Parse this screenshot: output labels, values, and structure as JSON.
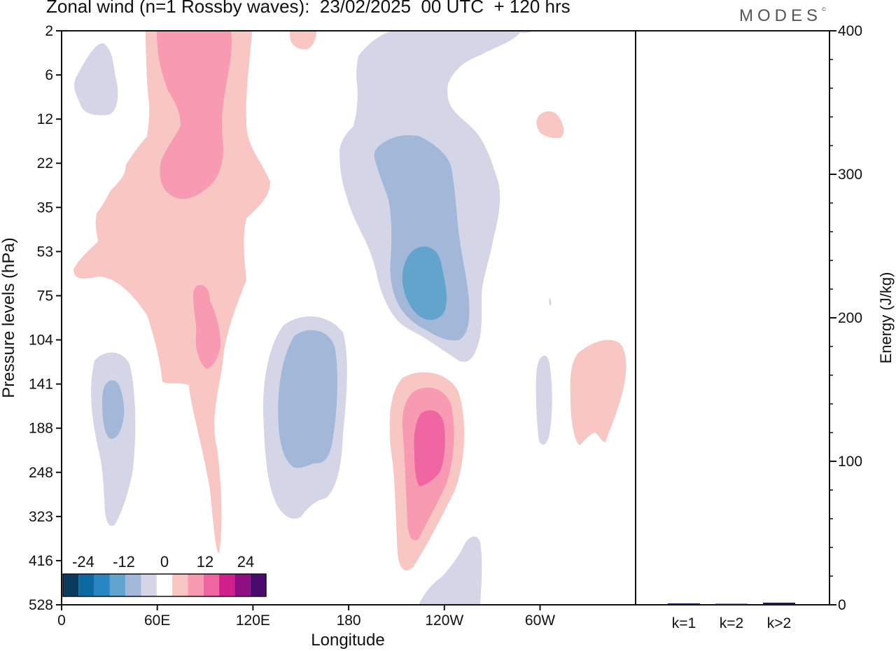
{
  "header": {
    "title": "Zonal wind (n=1 Rossby waves):  23/02/2025  00 UTC  + 120 hrs",
    "brand": "MODES",
    "brand_mark": "©"
  },
  "colors": {
    "background": "#ffffff",
    "neg_light": "#d4d5e7",
    "neg_mid": "#a3b8d8",
    "neg_strong": "#62a4cc",
    "pos_light": "#f8c6c3",
    "pos_mid": "#f99ab3",
    "pos_strong": "#f066a2",
    "energy_bar": "#1c1c4a"
  },
  "chart_data": [
    {
      "type": "heatmap",
      "xlabel": "Longitude",
      "ylabel": "Pressure levels (hPa)",
      "x_tick_labels": [
        "0",
        "60E",
        "120E",
        "180",
        "120W",
        "60W"
      ],
      "y_tick_labels": [
        "2",
        "6",
        "12",
        "22",
        "35",
        "53",
        "75",
        "104",
        "141",
        "188",
        "248",
        "323",
        "416",
        "528"
      ],
      "colorbar": {
        "tick_labels": [
          "-24",
          "-12",
          "0",
          "12",
          "24"
        ],
        "levels": [
          -30,
          -27,
          -24,
          -21,
          -18,
          -15,
          -12,
          -9,
          -6,
          -3,
          0,
          3,
          6,
          9,
          12,
          15,
          18,
          21,
          24,
          27,
          30
        ],
        "colors": [
          "#0a3a5e",
          "#0b6aa2",
          "#2a86c2",
          "#62a4cc",
          "#a3b8d8",
          "#d4d5e7",
          "#ffffff",
          "#f8c6c3",
          "#f99ab3",
          "#f066a2",
          "#d11f8c",
          "#8f0f82",
          "#4b0a6e"
        ]
      },
      "fields": {
        "positive": [
          {
            "level": 3,
            "region": "stratospheric band near 60E–110E, 2–416 hPa"
          },
          {
            "level": 6,
            "region": "upper stratosphere near 80E, 2–35 hPa"
          },
          {
            "level": 6,
            "region": "near 90E, 75–141 hPa"
          },
          {
            "level": 3,
            "region": "near 120W, 141–416 hPa"
          },
          {
            "level": 6,
            "region": "near 120W, 141–323 hPa"
          },
          {
            "level": 9,
            "region": "near 118W, 188–248 hPa"
          },
          {
            "level": 3,
            "region": "near 35W, 104–188 hPa"
          },
          {
            "level": 3,
            "region": "near 150E, 2 hPa"
          },
          {
            "level": 3,
            "region": "near 60W, 12 hPa"
          }
        ],
        "negative": [
          {
            "level": -3,
            "region": "near 25E, 2–12 hPa"
          },
          {
            "level": -3,
            "region": "near 25E, 104–323 hPa"
          },
          {
            "level": -9,
            "region": "near 25E, 141–188 hPa"
          },
          {
            "level": -3,
            "region": "near 160E, 104–323 hPa"
          },
          {
            "level": -6,
            "region": "near 160E, 104–248 hPa"
          },
          {
            "level": -3,
            "region": "near 130W, 2–104 hPa"
          },
          {
            "level": -6,
            "region": "near 130W, 22–104 hPa"
          },
          {
            "level": -12,
            "region": "near 130W, 53–104 hPa"
          },
          {
            "level": -3,
            "region": "near 65W, 141–188 hPa"
          },
          {
            "level": -3,
            "region": "near 130W, 416–528 hPa"
          }
        ]
      }
    },
    {
      "type": "bar",
      "categories": [
        "k=1",
        "k=2",
        "k>2"
      ],
      "values": [
        1,
        0.5,
        1.5
      ],
      "ylabel": "Energy (J/kg)",
      "ylim": [
        0,
        400
      ],
      "y_tick_labels": [
        "0",
        "100",
        "200",
        "300",
        "400"
      ]
    }
  ]
}
